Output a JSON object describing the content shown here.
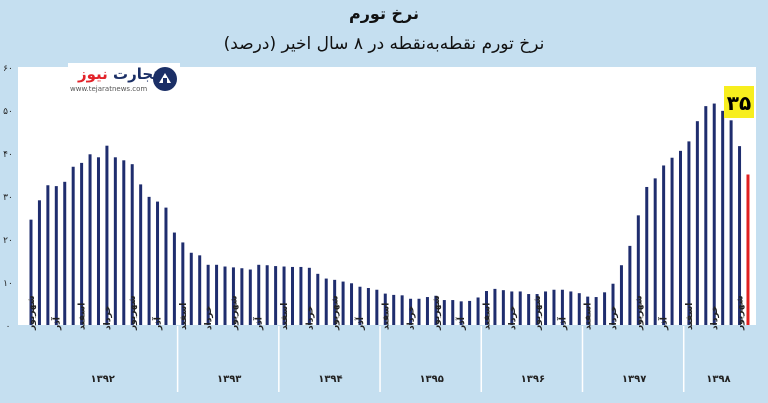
{
  "header": {
    "title": "نرخ تورم",
    "subtitle": "نرخ تورم نقطه‌به‌نقطه در ۸ سال اخیر (درصد)"
  },
  "logo": {
    "name_part1": "تجارت",
    "name_part2": "نیوز",
    "url": "www.tejaratnews.com"
  },
  "callout": {
    "text": "۳۵",
    "color": "#f7ee1e"
  },
  "colors": {
    "bar": "#1f2d6e",
    "last_bar": "#e02020",
    "plot_bg": "#ffffff",
    "page_bg": "#c5dff0"
  },
  "chart_data": {
    "type": "bar",
    "ylim": [
      0,
      60
    ],
    "yticks": [
      {
        "value": 0,
        "label": "۰"
      },
      {
        "value": 10,
        "label": "۱۰"
      },
      {
        "value": 20,
        "label": "۲۰"
      },
      {
        "value": 30,
        "label": "۳۰"
      },
      {
        "value": 40,
        "label": "۴۰"
      },
      {
        "value": 50,
        "label": "۵۰"
      },
      {
        "value": 60,
        "label": "۶۰"
      }
    ],
    "values": [
      24.5,
      29,
      32.5,
      32.3,
      33.3,
      36.8,
      37.7,
      39.7,
      39,
      41.7,
      39,
      38.3,
      37.4,
      32.7,
      29.8,
      28.7,
      27.3,
      21.5,
      19.2,
      16.8,
      16.2,
      14,
      14,
      13.6,
      13.4,
      13.2,
      12.9,
      14,
      13.9,
      13.7,
      13.6,
      13.5,
      13.5,
      13.3,
      11.9,
      10.8,
      10.5,
      10.1,
      9.7,
      8.9,
      8.6,
      8.2,
      7.3,
      7,
      6.9,
      6.1,
      6.1,
      6.5,
      6.8,
      5.8,
      5.8,
      5.5,
      5.6,
      6.4,
      7.9,
      8.4,
      8.1,
      7.8,
      7.8,
      7.2,
      7.2,
      7.8,
      8.2,
      8.2,
      7.8,
      7.4,
      6.6,
      6.5,
      7.6,
      9.6,
      13.9,
      18.4,
      25.5,
      32.1,
      34.1,
      37.1,
      38.9,
      40.5,
      42.7,
      47.4,
      50.9,
      51.5,
      49.8,
      47.6,
      41.6,
      35
    ]
  },
  "axis": {
    "month_labels": [
      {
        "bar": 0,
        "label": "شهریور"
      },
      {
        "bar": 3,
        "label": "آذر"
      },
      {
        "bar": 6,
        "label": "اسفند"
      },
      {
        "bar": 9,
        "label": "خرداد"
      },
      {
        "bar": 12,
        "label": "شهریور"
      },
      {
        "bar": 15,
        "label": "آذر"
      },
      {
        "bar": 18,
        "label": "اسفند"
      },
      {
        "bar": 21,
        "label": "خرداد"
      },
      {
        "bar": 24,
        "label": "شهریور"
      },
      {
        "bar": 27,
        "label": "آذر"
      },
      {
        "bar": 30,
        "label": "اسفند"
      },
      {
        "bar": 33,
        "label": "خرداد"
      },
      {
        "bar": 36,
        "label": "شهریور"
      },
      {
        "bar": 39,
        "label": "آذر"
      },
      {
        "bar": 42,
        "label": "اسفند"
      },
      {
        "bar": 45,
        "label": "خرداد"
      },
      {
        "bar": 48,
        "label": "شهریور"
      },
      {
        "bar": 51,
        "label": "آذر"
      },
      {
        "bar": 54,
        "label": "اسفند"
      },
      {
        "bar": 57,
        "label": "خرداد"
      },
      {
        "bar": 60,
        "label": "شهریور"
      },
      {
        "bar": 63,
        "label": "آذر"
      },
      {
        "bar": 66,
        "label": "اسفند"
      },
      {
        "bar": 69,
        "label": "خرداد"
      },
      {
        "bar": 72,
        "label": "شهریور"
      },
      {
        "bar": 75,
        "label": "آذر"
      },
      {
        "bar": 78,
        "label": "اسفند"
      },
      {
        "bar": 81,
        "label": "خرداد"
      },
      {
        "bar": 84,
        "label": "شهریور"
      }
    ],
    "years": [
      {
        "start": 0,
        "end": 18,
        "label": "۱۳۹۲"
      },
      {
        "start": 18,
        "end": 30,
        "label": "۱۳۹۳"
      },
      {
        "start": 30,
        "end": 42,
        "label": "۱۳۹۴"
      },
      {
        "start": 42,
        "end": 54,
        "label": "۱۳۹۵"
      },
      {
        "start": 54,
        "end": 66,
        "label": "۱۳۹۶"
      },
      {
        "start": 66,
        "end": 78,
        "label": "۱۳۹۷"
      },
      {
        "start": 78,
        "end": 86,
        "label": "۱۳۹۸"
      }
    ]
  }
}
